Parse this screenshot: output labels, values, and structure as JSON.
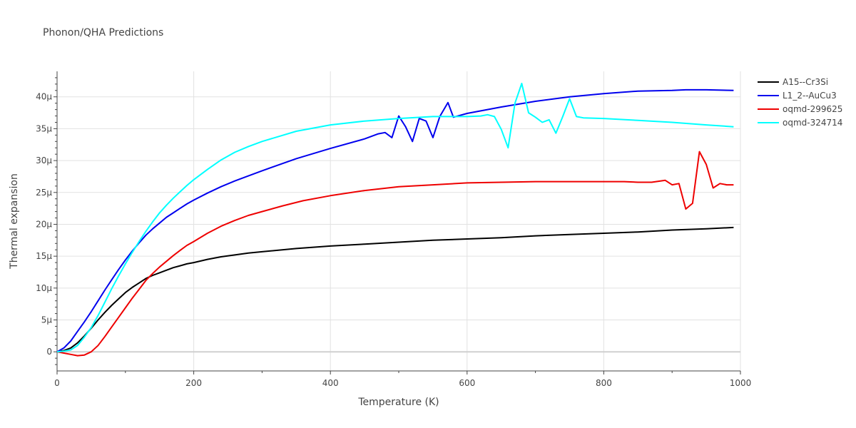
{
  "chart_data": {
    "type": "line",
    "title": "Phonon/QHA Predictions",
    "xlabel": "Temperature (K)",
    "ylabel": "Thermal expansion",
    "xlim": [
      0,
      1000
    ],
    "ylim": [
      -3,
      44
    ],
    "x_ticks": [
      0,
      200,
      400,
      600,
      800,
      1000
    ],
    "x_tick_labels": [
      "0",
      "200",
      "400",
      "600",
      "800",
      "1000"
    ],
    "x_minor_ticks": [
      100,
      300,
      500,
      700,
      900
    ],
    "y_ticks": [
      0,
      5,
      10,
      15,
      20,
      25,
      30,
      35,
      40
    ],
    "y_tick_labels": [
      "0",
      "5μ",
      "10μ",
      "15μ",
      "20μ",
      "25μ",
      "30μ",
      "35μ",
      "40μ"
    ],
    "grid": true,
    "legend_position": "top-right",
    "series": [
      {
        "name": "A15--Cr3Si",
        "color": "#000000",
        "x": [
          0,
          10,
          20,
          30,
          40,
          50,
          60,
          70,
          80,
          90,
          100,
          110,
          120,
          130,
          140,
          150,
          160,
          170,
          180,
          190,
          200,
          220,
          240,
          260,
          280,
          300,
          350,
          400,
          450,
          500,
          550,
          600,
          650,
          700,
          750,
          800,
          850,
          900,
          950,
          990
        ],
        "y": [
          0,
          0.2,
          0.6,
          1.4,
          2.5,
          3.7,
          5.0,
          6.2,
          7.3,
          8.3,
          9.3,
          10.1,
          10.8,
          11.5,
          12.0,
          12.4,
          12.8,
          13.2,
          13.5,
          13.8,
          14.0,
          14.5,
          14.9,
          15.2,
          15.5,
          15.7,
          16.2,
          16.6,
          16.9,
          17.2,
          17.5,
          17.7,
          17.9,
          18.2,
          18.4,
          18.6,
          18.8,
          19.1,
          19.3,
          19.5
        ]
      },
      {
        "name": "L1_2--AuCu3",
        "color": "#0000ee",
        "x": [
          0,
          10,
          20,
          30,
          40,
          50,
          60,
          70,
          80,
          90,
          100,
          110,
          120,
          130,
          140,
          150,
          160,
          170,
          180,
          190,
          200,
          220,
          240,
          260,
          280,
          300,
          350,
          400,
          450,
          470,
          480,
          490,
          500,
          510,
          520,
          530,
          540,
          550,
          560,
          572,
          580,
          600,
          650,
          700,
          750,
          800,
          850,
          900,
          920,
          950,
          990
        ],
        "y": [
          0,
          0.6,
          1.7,
          3.2,
          4.7,
          6.3,
          8.0,
          9.7,
          11.3,
          12.9,
          14.4,
          15.8,
          17.1,
          18.3,
          19.3,
          20.2,
          21.1,
          21.8,
          22.5,
          23.2,
          23.8,
          24.9,
          25.9,
          26.8,
          27.6,
          28.4,
          30.3,
          31.9,
          33.4,
          34.2,
          34.4,
          33.6,
          37.0,
          35.3,
          33.0,
          36.6,
          36.2,
          33.6,
          36.9,
          39.1,
          36.8,
          37.4,
          38.4,
          39.3,
          40.0,
          40.5,
          40.9,
          41.0,
          41.1,
          41.1,
          41.0
        ]
      },
      {
        "name": "oqmd-299625",
        "color": "#ee0000",
        "x": [
          0,
          10,
          20,
          30,
          40,
          50,
          60,
          70,
          80,
          90,
          100,
          110,
          120,
          130,
          140,
          150,
          160,
          170,
          180,
          190,
          200,
          220,
          240,
          260,
          280,
          300,
          330,
          360,
          400,
          450,
          500,
          550,
          600,
          650,
          700,
          750,
          800,
          830,
          850,
          870,
          890,
          900,
          910,
          920,
          930,
          940,
          950,
          960,
          970,
          980,
          990
        ],
        "y": [
          0,
          -0.2,
          -0.4,
          -0.6,
          -0.5,
          0,
          1.0,
          2.4,
          3.9,
          5.4,
          6.9,
          8.4,
          9.8,
          11.2,
          12.3,
          13.3,
          14.2,
          15.1,
          15.9,
          16.7,
          17.3,
          18.6,
          19.7,
          20.6,
          21.4,
          22.0,
          22.9,
          23.7,
          24.5,
          25.3,
          25.9,
          26.2,
          26.5,
          26.6,
          26.7,
          26.7,
          26.7,
          26.7,
          26.6,
          26.6,
          26.9,
          26.2,
          26.4,
          22.4,
          23.3,
          31.4,
          29.4,
          25.7,
          26.4,
          26.2,
          26.2
        ]
      },
      {
        "name": "oqmd-324714",
        "color": "#00ffff",
        "x": [
          0,
          10,
          20,
          30,
          40,
          50,
          60,
          70,
          80,
          90,
          100,
          110,
          120,
          130,
          140,
          150,
          160,
          170,
          180,
          190,
          200,
          220,
          240,
          260,
          280,
          300,
          350,
          400,
          450,
          500,
          550,
          600,
          620,
          630,
          640,
          650,
          660,
          670,
          680,
          690,
          700,
          710,
          720,
          730,
          740,
          750,
          760,
          770,
          800,
          850,
          900,
          950,
          990
        ],
        "y": [
          0,
          0.1,
          0.3,
          1.0,
          2.3,
          3.8,
          5.7,
          7.8,
          9.9,
          11.9,
          13.8,
          15.6,
          17.3,
          18.9,
          20.4,
          21.8,
          23.0,
          24.1,
          25.1,
          26.1,
          27.0,
          28.6,
          30.1,
          31.3,
          32.2,
          33.0,
          34.6,
          35.6,
          36.2,
          36.6,
          36.9,
          36.9,
          37.0,
          37.2,
          36.9,
          34.9,
          32.0,
          39.0,
          42.1,
          37.5,
          36.8,
          36.0,
          36.4,
          34.3,
          36.9,
          39.7,
          36.9,
          36.7,
          36.6,
          36.3,
          36.0,
          35.6,
          35.3
        ]
      }
    ]
  }
}
